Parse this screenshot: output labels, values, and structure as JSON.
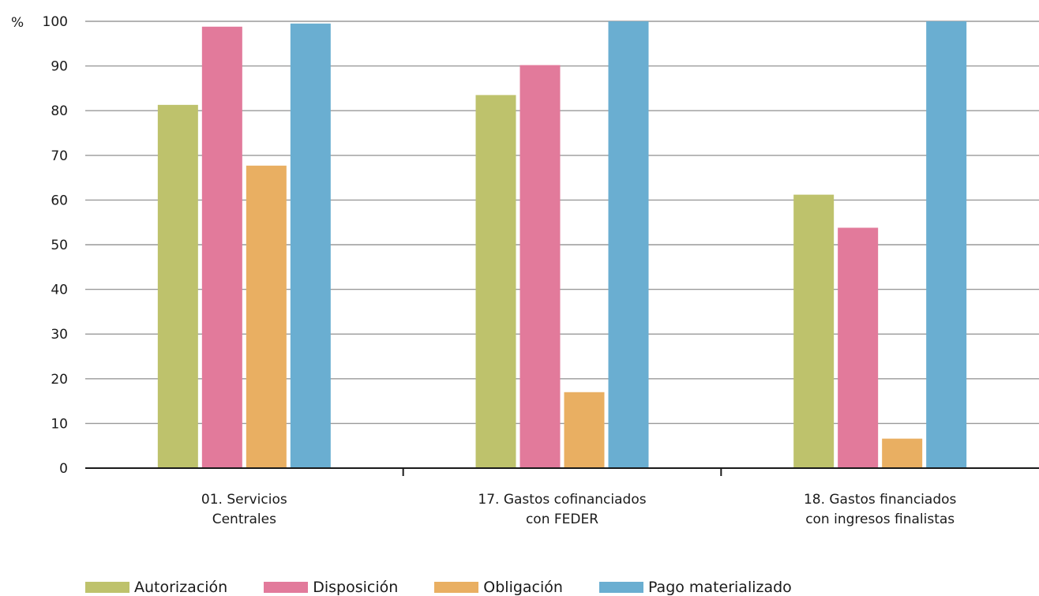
{
  "chart_data": {
    "type": "bar",
    "y_unit_label": "%",
    "ylim": [
      0,
      100
    ],
    "yticks": [
      0,
      10,
      20,
      30,
      40,
      50,
      60,
      70,
      80,
      90,
      100
    ],
    "grid": true,
    "legend_position": "bottom",
    "categories": [
      [
        "01. Servicios",
        "Centrales"
      ],
      [
        "17. Gastos cofinanciados",
        "con FEDER"
      ],
      [
        "18. Gastos financiados",
        "con ingresos finalistas"
      ]
    ],
    "series": [
      {
        "name": "Autorización",
        "color": "#bec26c",
        "values": [
          81.3,
          83.5,
          61.2
        ]
      },
      {
        "name": "Disposición",
        "color": "#e27a9b",
        "values": [
          98.8,
          90.2,
          53.8
        ]
      },
      {
        "name": "Obligación",
        "color": "#e9af62",
        "values": [
          67.7,
          17.0,
          6.6
        ]
      },
      {
        "name": "Pago materializado",
        "color": "#6aaed1",
        "values": [
          99.5,
          100,
          100
        ]
      }
    ]
  }
}
